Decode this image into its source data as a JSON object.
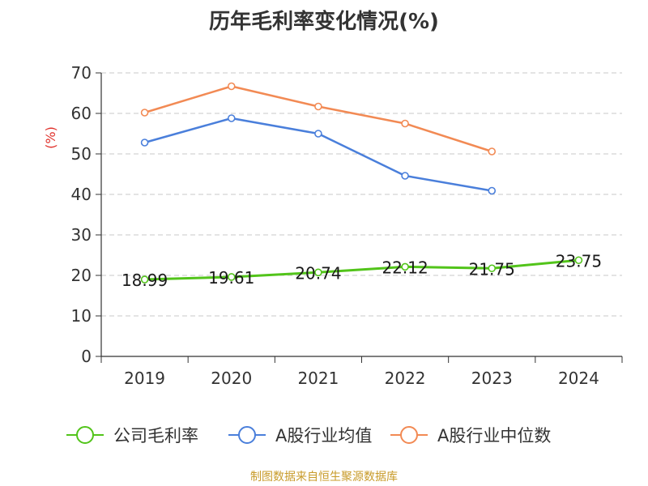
{
  "chart_data": {
    "type": "line",
    "title": "历年毛利率变化情况(%)",
    "ylabel": "(%)",
    "xlabel": "",
    "categories": [
      "2019",
      "2020",
      "2021",
      "2022",
      "2023",
      "2024"
    ],
    "ylim": [
      0,
      70
    ],
    "yticks": [
      "0",
      "10",
      "20",
      "30",
      "40",
      "50",
      "60",
      "70"
    ],
    "grid": true,
    "legend_position": "bottom",
    "series": [
      {
        "name": "公司毛利率",
        "color": "#52c41a",
        "values": [
          18.99,
          19.61,
          20.74,
          22.12,
          21.75,
          23.75
        ],
        "labels": [
          "18.99",
          "19.61",
          "20.74",
          "22.12",
          "21.75",
          "23.75"
        ]
      },
      {
        "name": "A股行业均值",
        "color": "#4a7fdb",
        "values": [
          52.8,
          58.8,
          55.0,
          44.6,
          40.9,
          null
        ]
      },
      {
        "name": "A股行业中位数",
        "color": "#f28a54",
        "values": [
          60.2,
          66.7,
          61.7,
          57.5,
          50.6,
          null
        ]
      }
    ]
  },
  "colors": {
    "axis": "#333333",
    "grid": "#c8c8c8",
    "ylabel": "#e0312b",
    "source": "#c89b2a"
  },
  "source": "制图数据来自恒生聚源数据库"
}
